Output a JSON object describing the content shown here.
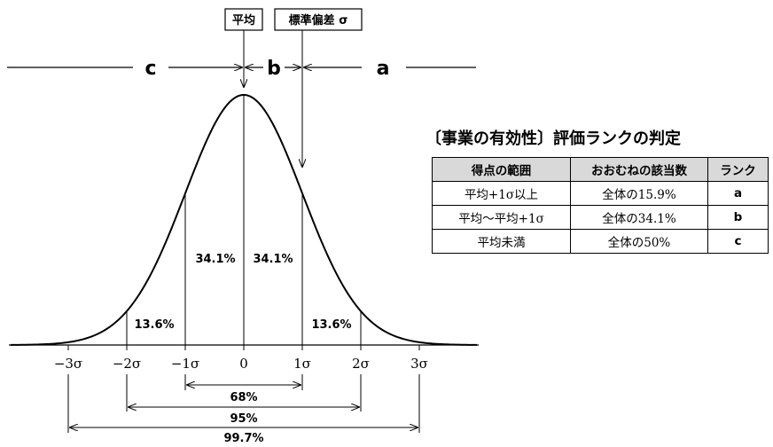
{
  "labels": {
    "mean_box": "平均",
    "sd_box": "標準偏差 σ",
    "zone_c": "c",
    "zone_b": "b",
    "zone_a": "a"
  },
  "axis_ticks": [
    "−3σ",
    "−2σ",
    "−1σ",
    "0",
    "1σ",
    "2σ",
    "3σ"
  ],
  "area_labels": {
    "left_inner": "34.1%",
    "right_inner": "34.1%",
    "left_outer": "13.6%",
    "right_outer": "13.6%"
  },
  "intervals": [
    "68%",
    "95%",
    "99.7%"
  ],
  "table": {
    "title": "〔事業の有効性〕評価ランクの判定",
    "headers": [
      "得点の範囲",
      "おおむねの該当数",
      "ランク"
    ],
    "rows": [
      {
        "range": "平均+1σ以上",
        "share": "全体の15.9%",
        "rank": "a"
      },
      {
        "range": "平均〜平均+1σ",
        "share": "全体の34.1%",
        "rank": "b"
      },
      {
        "range": "平均未満",
        "share": "全体の50%",
        "rank": "c"
      }
    ]
  }
}
